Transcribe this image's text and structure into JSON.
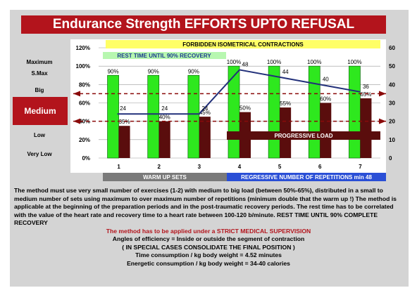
{
  "title": "Endurance Strength EFFORTS UPTO REFUSAL",
  "side_labels": {
    "maximum": "Maximum",
    "smax": "S.Max",
    "big": "Big",
    "medium": "Medium",
    "low": "Low",
    "very_low": "Very Low"
  },
  "banners": {
    "forbidden": "FORBIDDEN ISOMETRICAL CONTRACTIONS",
    "rest": "REST TIME UNTIL 90% RECOVERY",
    "progressive": "PROGRESSIVE LOAD",
    "warm_up": "WARM UP SETS",
    "regressive": "REGRESSIVE NUMBER OF REPETITIONS min 48"
  },
  "colors": {
    "title_red": "#b3141c",
    "green_bar": "#2ee81e",
    "dark_red_bar": "#5a0d0d",
    "line_blue": "#22307a",
    "yellow_banner": "#ffff66",
    "grey_band": "#7a7a7a",
    "blue_band": "#2a4fd6"
  },
  "chart_data": {
    "type": "bar",
    "categories": [
      "1",
      "2",
      "3",
      "4",
      "5",
      "6",
      "7"
    ],
    "y_left_ticks": [
      "0%",
      "20%",
      "40%",
      "60%",
      "80%",
      "100%",
      "120%"
    ],
    "y_right_ticks": [
      "0",
      "10",
      "20",
      "30",
      "40",
      "50",
      "60"
    ],
    "ylim_left": [
      0,
      120
    ],
    "ylim_right": [
      0,
      60
    ],
    "series": [
      {
        "values": [
          90,
          90,
          90,
          100,
          100,
          100,
          100
        ],
        "labels": [
          "90%",
          "90%",
          "90%",
          "100%",
          "100%",
          "100%",
          "100%"
        ]
      },
      {
        "values": [
          35,
          40,
          45,
          50,
          55,
          60,
          65
        ],
        "labels": [
          "35%",
          "40%",
          "45%",
          "50%",
          "55%",
          "60%",
          "65%"
        ]
      },
      {
        "type": "line",
        "axis": "right",
        "values": [
          24,
          24,
          24,
          48,
          44,
          40,
          36
        ],
        "labels": [
          "24",
          "24",
          "24",
          "48",
          "44",
          "40",
          "36"
        ]
      }
    ],
    "reference_lines_pct": [
      70,
      40
    ]
  },
  "description": {
    "paragraph": "The method must use very small number of exercises (1-2) with medium to big load (between 50%-65%), distributed in a small to medium number of sets using maximum to over maximum number of repetitions (minimum double that the warm up !) The method is applicable at the beginning of the preparation periods and in the post-traumatic recovery periods. The rest time has to be correlated with the value of the heart rate and recovery time to a heart rate between 100-120 b/minute. REST TIME UNTIL 90% COMPLETE RECOVERY",
    "supervision": "The method has to be applied under a STRICT MEDICAL SUPERVISION",
    "efficiency": "Angles of efficiency = Inside or outside  the segment of contraction",
    "special": "( IN SPECIAL CASES CONSOLIDATE THE FINAL POSITION )",
    "time": "Time consumption /  kg body weight =  4.52 minutes",
    "energy": "Energetic consumption /  kg body weight =  34-40  calories"
  }
}
